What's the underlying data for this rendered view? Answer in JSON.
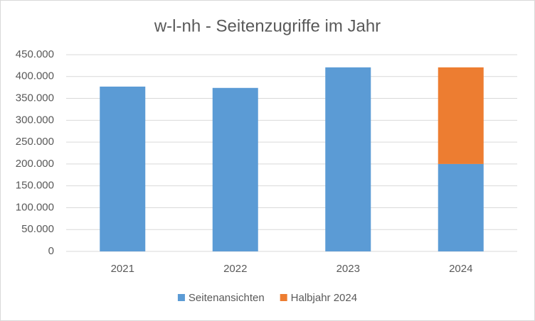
{
  "chart_data": {
    "type": "stacked_bar",
    "title": "w-l-nh - Seitenzugriffe im Jahr",
    "categories": [
      "2021",
      "2022",
      "2023",
      "2024"
    ],
    "series": [
      {
        "name": "Seitenansichten",
        "color": "#5b9bd5",
        "values": [
          377000,
          374000,
          421000,
          200000
        ]
      },
      {
        "name": "Halbjahr 2024",
        "color": "#ed7d31",
        "values": [
          null,
          null,
          null,
          221000
        ]
      }
    ],
    "ylim": [
      0,
      450000
    ],
    "yticks": [
      0,
      {
        "value": 50000,
        "label": "50.000"
      },
      {
        "value": 100000,
        "label": "100.000"
      },
      {
        "value": 150000,
        "label": "150.000"
      },
      {
        "value": 200000,
        "label": "200.000"
      },
      {
        "value": 250000,
        "label": "250.000"
      },
      {
        "value": 300000,
        "label": "300.000"
      },
      {
        "value": 350000,
        "label": "350.000"
      },
      {
        "value": 400000,
        "label": "400.000"
      },
      {
        "value": 450000,
        "label": "450.000"
      }
    ],
    "grid": true,
    "legend": "bottom"
  }
}
